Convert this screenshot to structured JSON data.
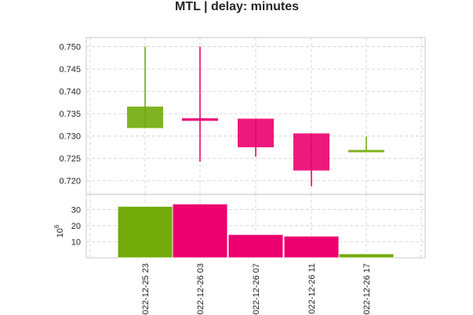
{
  "chart_data": {
    "type": "candlestick",
    "title": "MTL | delay: minutes",
    "colors": {
      "up": "#72ab0a",
      "down": "#ec006f"
    },
    "categories": [
      "022-12-25 23",
      "022-12-26 03",
      "022-12-26 07",
      "022-12-26 11",
      "022-12-26 17"
    ],
    "price": {
      "ylim": [
        0.7175,
        0.7515
      ],
      "yticks": [
        "0.720",
        "0.725",
        "0.730",
        "0.735",
        "0.740",
        "0.745",
        "0.750"
      ],
      "candles": [
        {
          "open": 0.7318,
          "close": 0.7366,
          "high": 0.75,
          "low": 0.7318,
          "direction": "up"
        },
        {
          "open": 0.734,
          "close": 0.7334,
          "high": 0.75,
          "low": 0.7243,
          "direction": "down"
        },
        {
          "open": 0.7339,
          "close": 0.7275,
          "high": 0.7339,
          "low": 0.7254,
          "direction": "down"
        },
        {
          "open": 0.7306,
          "close": 0.7223,
          "high": 0.7306,
          "low": 0.7188,
          "direction": "down"
        },
        {
          "open": 0.7266,
          "close": 0.7269,
          "high": 0.7299,
          "low": 0.7266,
          "direction": "up"
        }
      ]
    },
    "volume": {
      "ylabel": "10",
      "ylabel_exponent": "6",
      "ylim": [
        0,
        38
      ],
      "yticks": [
        "10",
        "20",
        "30"
      ],
      "values": [
        32,
        33.5,
        14.5,
        13.5,
        2.5
      ],
      "directions": [
        "up",
        "down",
        "down",
        "down",
        "up"
      ]
    },
    "grid": true
  }
}
